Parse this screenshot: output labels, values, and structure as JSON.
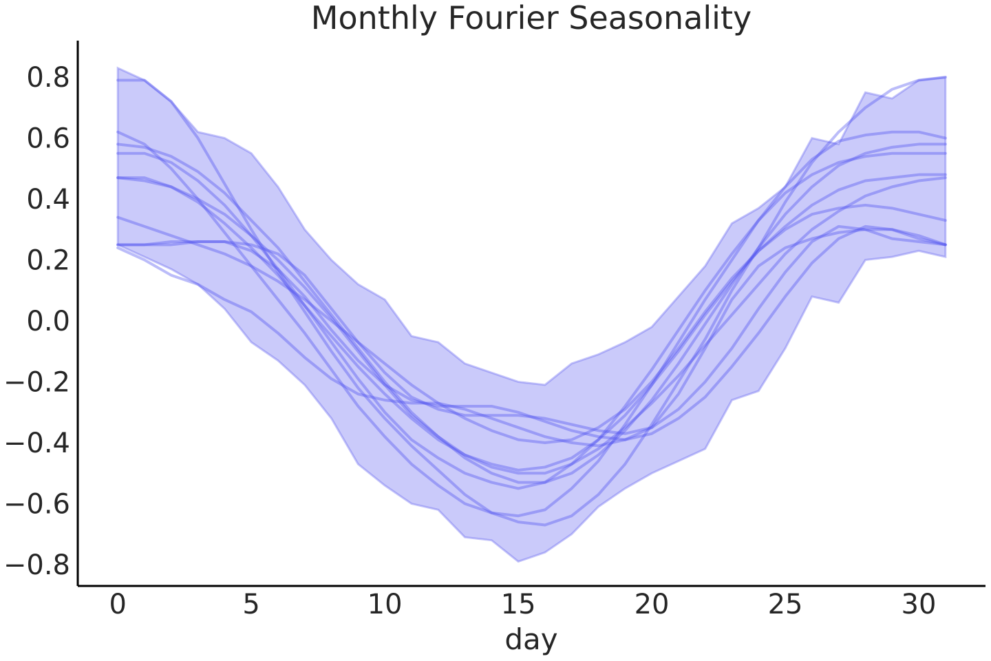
{
  "chart_data": {
    "type": "line",
    "title": "Monthly Fourier Seasonality",
    "xlabel": "day",
    "ylabel": "",
    "xlim": [
      -1.5,
      32.5
    ],
    "ylim": [
      -0.87,
      0.92
    ],
    "xticks": [
      0,
      5,
      10,
      15,
      20,
      25,
      30
    ],
    "yticks": [
      -0.8,
      -0.6,
      -0.4,
      -0.2,
      0.0,
      0.2,
      0.4,
      0.6,
      0.8
    ],
    "grid": false,
    "x": [
      0,
      1,
      2,
      3,
      4,
      5,
      6,
      7,
      8,
      9,
      10,
      11,
      12,
      13,
      14,
      15,
      16,
      17,
      18,
      19,
      20,
      21,
      22,
      23,
      24,
      25,
      26,
      27,
      28,
      29,
      30,
      31
    ],
    "band": {
      "upper": [
        0.83,
        0.79,
        0.72,
        0.62,
        0.6,
        0.55,
        0.44,
        0.3,
        0.2,
        0.12,
        0.07,
        -0.05,
        -0.07,
        -0.14,
        -0.17,
        -0.2,
        -0.21,
        -0.14,
        -0.11,
        -0.07,
        -0.02,
        0.08,
        0.18,
        0.32,
        0.37,
        0.44,
        0.6,
        0.58,
        0.75,
        0.73,
        0.79,
        0.8
      ],
      "lower": [
        0.25,
        0.21,
        0.17,
        0.12,
        0.04,
        -0.07,
        -0.13,
        -0.21,
        -0.32,
        -0.47,
        -0.54,
        -0.6,
        -0.62,
        -0.71,
        -0.72,
        -0.79,
        -0.76,
        -0.7,
        -0.61,
        -0.55,
        -0.5,
        -0.46,
        -0.42,
        -0.26,
        -0.23,
        -0.09,
        0.08,
        0.06,
        0.2,
        0.21,
        0.23,
        0.21
      ]
    },
    "colors": {
      "band": "#6b6cf0",
      "line": "#4b4ff0",
      "axis": "#000000",
      "text": "#262626"
    },
    "series": [
      {
        "values": [
          0.79,
          0.79,
          0.72,
          0.6,
          0.45,
          0.3,
          0.16,
          0.03,
          -0.1,
          -0.22,
          -0.32,
          -0.41,
          -0.49,
          -0.57,
          -0.63,
          -0.66,
          -0.67,
          -0.64,
          -0.57,
          -0.47,
          -0.34,
          -0.2,
          -0.06,
          0.1,
          0.24,
          0.39,
          0.52,
          0.62,
          0.7,
          0.76,
          0.79,
          0.8
        ]
      },
      {
        "values": [
          0.62,
          0.58,
          0.5,
          0.4,
          0.29,
          0.18,
          0.07,
          -0.04,
          -0.16,
          -0.28,
          -0.38,
          -0.47,
          -0.54,
          -0.6,
          -0.63,
          -0.64,
          -0.62,
          -0.55,
          -0.46,
          -0.34,
          -0.21,
          -0.07,
          0.07,
          0.2,
          0.33,
          0.44,
          0.53,
          0.59,
          0.61,
          0.62,
          0.62,
          0.6
        ]
      },
      {
        "values": [
          0.58,
          0.57,
          0.54,
          0.49,
          0.42,
          0.33,
          0.24,
          0.13,
          0.02,
          -0.09,
          -0.2,
          -0.3,
          -0.38,
          -0.45,
          -0.5,
          -0.53,
          -0.53,
          -0.5,
          -0.44,
          -0.36,
          -0.26,
          -0.14,
          -0.01,
          0.12,
          0.24,
          0.35,
          0.44,
          0.51,
          0.55,
          0.57,
          0.58,
          0.58
        ]
      },
      {
        "values": [
          0.55,
          0.55,
          0.52,
          0.46,
          0.38,
          0.28,
          0.17,
          0.05,
          -0.07,
          -0.19,
          -0.3,
          -0.39,
          -0.45,
          -0.5,
          -0.53,
          -0.55,
          -0.53,
          -0.47,
          -0.39,
          -0.28,
          -0.16,
          -0.03,
          0.1,
          0.22,
          0.33,
          0.42,
          0.48,
          0.52,
          0.54,
          0.55,
          0.55,
          0.55
        ]
      },
      {
        "values": [
          0.47,
          0.47,
          0.44,
          0.39,
          0.32,
          0.24,
          0.15,
          0.05,
          -0.05,
          -0.15,
          -0.24,
          -0.32,
          -0.39,
          -0.44,
          -0.48,
          -0.5,
          -0.5,
          -0.47,
          -0.42,
          -0.35,
          -0.27,
          -0.18,
          -0.08,
          0.02,
          0.12,
          0.22,
          0.3,
          0.36,
          0.41,
          0.44,
          0.46,
          0.47
        ]
      },
      {
        "values": [
          0.47,
          0.46,
          0.44,
          0.4,
          0.35,
          0.28,
          0.2,
          0.11,
          0.01,
          -0.1,
          -0.21,
          -0.31,
          -0.38,
          -0.44,
          -0.47,
          -0.49,
          -0.48,
          -0.45,
          -0.39,
          -0.31,
          -0.21,
          -0.1,
          0.02,
          0.13,
          0.23,
          0.31,
          0.38,
          0.43,
          0.46,
          0.47,
          0.48,
          0.48
        ]
      },
      {
        "values": [
          0.34,
          0.31,
          0.28,
          0.25,
          0.22,
          0.18,
          0.13,
          0.07,
          0.0,
          -0.07,
          -0.14,
          -0.21,
          -0.27,
          -0.32,
          -0.36,
          -0.39,
          -0.4,
          -0.39,
          -0.35,
          -0.29,
          -0.2,
          -0.09,
          0.03,
          0.14,
          0.23,
          0.3,
          0.35,
          0.37,
          0.38,
          0.37,
          0.35,
          0.33
        ]
      },
      {
        "values": [
          0.25,
          0.25,
          0.26,
          0.26,
          0.26,
          0.23,
          0.17,
          0.08,
          -0.03,
          -0.13,
          -0.21,
          -0.26,
          -0.28,
          -0.28,
          -0.28,
          -0.3,
          -0.33,
          -0.36,
          -0.38,
          -0.39,
          -0.37,
          -0.32,
          -0.25,
          -0.15,
          -0.04,
          0.08,
          0.19,
          0.27,
          0.31,
          0.3,
          0.27,
          0.25
        ]
      },
      {
        "values": [
          0.25,
          0.25,
          0.25,
          0.26,
          0.26,
          0.25,
          0.22,
          0.15,
          0.04,
          -0.07,
          -0.17,
          -0.25,
          -0.29,
          -0.31,
          -0.31,
          -0.31,
          -0.32,
          -0.34,
          -0.36,
          -0.37,
          -0.35,
          -0.29,
          -0.2,
          -0.09,
          0.04,
          0.16,
          0.26,
          0.31,
          0.3,
          0.27,
          0.26,
          0.25
        ]
      },
      {
        "values": [
          0.24,
          0.2,
          0.15,
          0.12,
          0.07,
          0.03,
          -0.04,
          -0.12,
          -0.19,
          -0.24,
          -0.26,
          -0.27,
          -0.27,
          -0.29,
          -0.32,
          -0.35,
          -0.38,
          -0.4,
          -0.41,
          -0.39,
          -0.35,
          -0.24,
          -0.09,
          0.07,
          0.18,
          0.24,
          0.27,
          0.29,
          0.3,
          0.3,
          0.28,
          0.25
        ]
      }
    ]
  }
}
